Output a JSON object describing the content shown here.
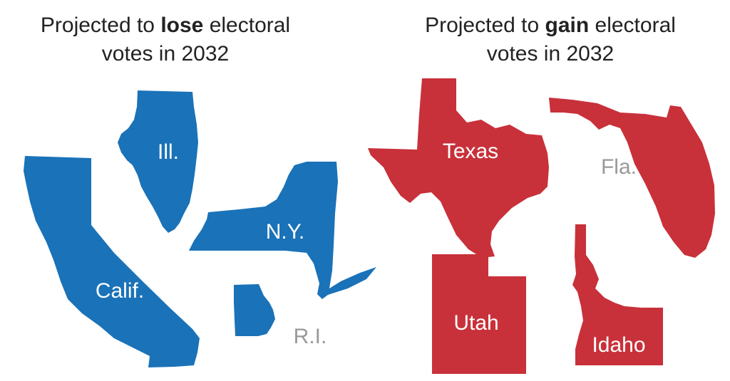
{
  "left_panel": {
    "title_before": "Projected to ",
    "title_emphasis": "lose",
    "title_after": " electoral",
    "title_line2": "votes in 2032",
    "color": "#1a72b8",
    "states": [
      {
        "label": "Ill."
      },
      {
        "label": "N.Y."
      },
      {
        "label": "Calif."
      },
      {
        "label": "R.I."
      }
    ]
  },
  "right_panel": {
    "title_before": "Projected to ",
    "title_emphasis": "gain",
    "title_after": " electoral",
    "title_line2": "votes in 2032",
    "color": "#c8313a",
    "states": [
      {
        "label": "Texas"
      },
      {
        "label": "Fla."
      },
      {
        "label": "Utah"
      },
      {
        "label": "Idaho"
      }
    ]
  },
  "colors": {
    "lose": "#1a72b8",
    "gain": "#c8313a",
    "label_on_shape": "#ffffff",
    "label_off_shape": "#999999"
  }
}
